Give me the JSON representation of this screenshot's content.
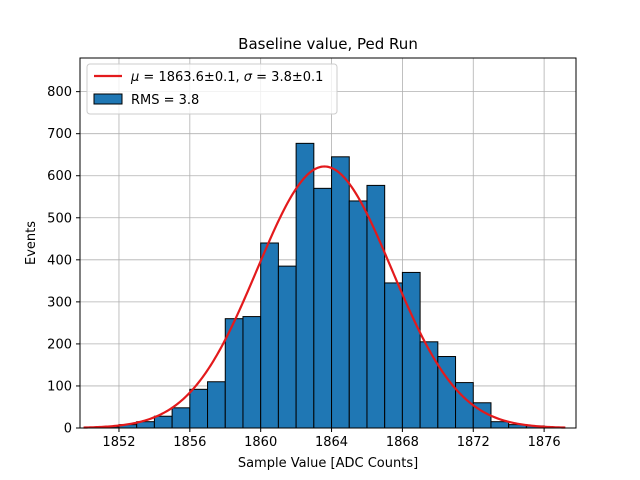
{
  "chart_data": {
    "type": "bar",
    "title": "Baseline value, Ped Run",
    "xlabel": "Sample Value [ADC Counts]",
    "ylabel": "Events",
    "xlim": [
      1849.8,
      1877.8
    ],
    "ylim": [
      0,
      880
    ],
    "xticks": [
      1852,
      1856,
      1860,
      1864,
      1868,
      1872,
      1876
    ],
    "yticks": [
      0,
      100,
      200,
      300,
      400,
      500,
      600,
      700,
      800
    ],
    "grid": true,
    "legend_position": "top-left",
    "bin_start": 1850.0,
    "bin_width": 1.0,
    "bin_values": [
      0,
      3,
      8,
      15,
      28,
      48,
      92,
      110,
      260,
      265,
      440,
      385,
      677,
      570,
      645,
      540,
      577,
      345,
      370,
      205,
      170,
      108,
      60,
      15,
      8,
      5,
      2
    ],
    "fit": {
      "mu": 1863.6,
      "sigma": 3.8,
      "amplitude": 622,
      "x_range": [
        1850.0,
        1877.2
      ]
    },
    "series": [
      {
        "name": "μ = 1863.6±0.1, σ = 3.8±0.1",
        "kind": "line",
        "color": "#e31a1c"
      },
      {
        "name": "RMS = 3.8",
        "kind": "histogram",
        "color": "#1f77b4"
      }
    ],
    "legend": {
      "fit_prefix_mu": "μ",
      "fit_mid": " = 1863.6±0.1, ",
      "fit_prefix_sigma": "σ",
      "fit_suffix": " = 3.8±0.1",
      "hist_label": "RMS = 3.8"
    }
  }
}
